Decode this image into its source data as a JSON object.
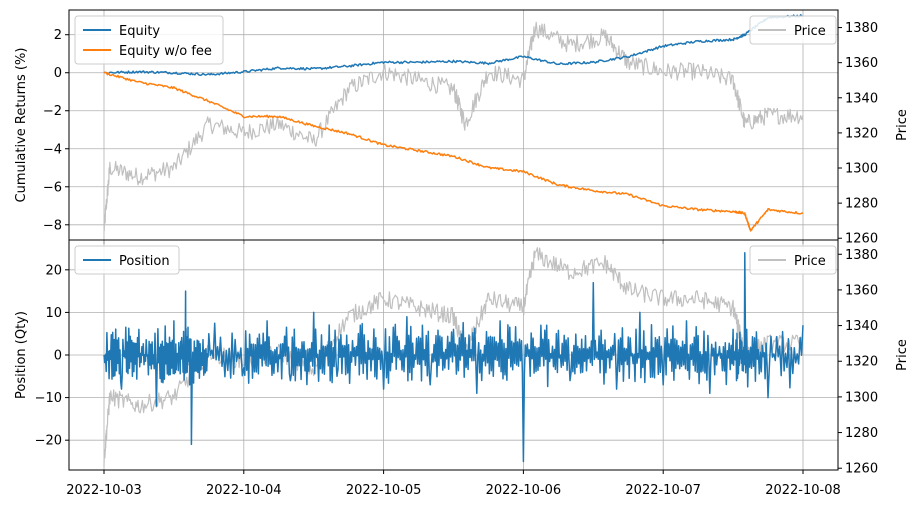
{
  "chart_data": [
    {
      "type": "line",
      "title": "",
      "xlabel": "",
      "ylabel": "Cumulative Returns (%)",
      "y2label": "Price",
      "x_ticks": [
        "2022-10-03",
        "2022-10-04",
        "2022-10-05",
        "2022-10-06",
        "2022-10-07",
        "2022-10-08"
      ],
      "ylim": [
        -8.8,
        3.3
      ],
      "y_ticks": [
        "−8",
        "−6",
        "−4",
        "−2",
        "0",
        "2"
      ],
      "y2lim": [
        1259,
        1390
      ],
      "y2_ticks": [
        "1260",
        "1280",
        "1300",
        "1320",
        "1340",
        "1360",
        "1380"
      ],
      "grid": true,
      "legend_left": {
        "placement": "top-left",
        "entries": [
          "Equity",
          "Equity w/o fee"
        ]
      },
      "legend_right": {
        "placement": "top-right",
        "entries": [
          "Price"
        ]
      },
      "series": [
        {
          "name": "Equity",
          "axis": "left",
          "color": "#1f77b4",
          "x": [
            "2022-10-03 00:00",
            "2022-10-03 06:00",
            "2022-10-03 12:00",
            "2022-10-03 18:00",
            "2022-10-04 00:00",
            "2022-10-04 06:00",
            "2022-10-04 12:00",
            "2022-10-04 18:00",
            "2022-10-05 00:00",
            "2022-10-05 06:00",
            "2022-10-05 12:00",
            "2022-10-05 18:00",
            "2022-10-06 00:00",
            "2022-10-06 06:00",
            "2022-10-06 12:00",
            "2022-10-06 18:00",
            "2022-10-07 00:00",
            "2022-10-07 06:00",
            "2022-10-07 12:00",
            "2022-10-07 14:00",
            "2022-10-07 18:00",
            "2022-10-08 00:00"
          ],
          "y": [
            0.0,
            0.05,
            0.0,
            -0.1,
            0.05,
            0.25,
            0.2,
            0.35,
            0.55,
            0.55,
            0.6,
            0.5,
            0.85,
            0.45,
            0.55,
            0.85,
            1.4,
            1.65,
            1.75,
            2.0,
            2.9,
            3.0
          ]
        },
        {
          "name": "Equity w/o fee",
          "axis": "left",
          "color": "#ff7f0e",
          "x": [
            "2022-10-03 00:00",
            "2022-10-03 06:00",
            "2022-10-03 12:00",
            "2022-10-03 18:00",
            "2022-10-04 00:00",
            "2022-10-04 06:00",
            "2022-10-04 12:00",
            "2022-10-04 18:00",
            "2022-10-05 00:00",
            "2022-10-05 06:00",
            "2022-10-05 12:00",
            "2022-10-05 18:00",
            "2022-10-06 00:00",
            "2022-10-06 06:00",
            "2022-10-06 12:00",
            "2022-10-06 18:00",
            "2022-10-07 00:00",
            "2022-10-07 06:00",
            "2022-10-07 12:00",
            "2022-10-07 14:00",
            "2022-10-07 15:00",
            "2022-10-07 18:00",
            "2022-10-08 00:00"
          ],
          "y": [
            0.0,
            -0.5,
            -0.8,
            -1.5,
            -2.3,
            -2.3,
            -2.8,
            -3.2,
            -3.8,
            -4.1,
            -4.4,
            -5.0,
            -5.2,
            -5.9,
            -6.2,
            -6.4,
            -7.0,
            -7.2,
            -7.3,
            -7.4,
            -8.3,
            -7.2,
            -7.4
          ]
        },
        {
          "name": "Price",
          "axis": "right",
          "color": "#c0c0c0",
          "x": [
            "2022-10-03 00:00",
            "2022-10-03 01:00",
            "2022-10-03 06:00",
            "2022-10-03 12:00",
            "2022-10-03 18:00",
            "2022-10-04 00:00",
            "2022-10-04 06:00",
            "2022-10-04 12:00",
            "2022-10-04 18:00",
            "2022-10-05 00:00",
            "2022-10-05 06:00",
            "2022-10-05 12:00",
            "2022-10-05 14:00",
            "2022-10-05 18:00",
            "2022-10-06 00:00",
            "2022-10-06 02:00",
            "2022-10-06 08:00",
            "2022-10-06 14:00",
            "2022-10-06 18:00",
            "2022-10-07 00:00",
            "2022-10-07 06:00",
            "2022-10-07 12:00",
            "2022-10-07 14:00",
            "2022-10-07 18:00",
            "2022-10-08 00:00"
          ],
          "y": [
            1265,
            1300,
            1295,
            1300,
            1325,
            1320,
            1325,
            1315,
            1345,
            1355,
            1350,
            1345,
            1325,
            1355,
            1350,
            1380,
            1370,
            1375,
            1360,
            1355,
            1355,
            1350,
            1325,
            1330,
            1330
          ]
        }
      ]
    },
    {
      "type": "line",
      "title": "",
      "xlabel": "",
      "ylabel": "Position (Qty)",
      "y2label": "Price",
      "x_ticks": [
        "2022-10-03",
        "2022-10-04",
        "2022-10-05",
        "2022-10-06",
        "2022-10-07",
        "2022-10-08"
      ],
      "ylim": [
        -27,
        27
      ],
      "y_ticks": [
        "−20",
        "−10",
        "0",
        "10",
        "20"
      ],
      "y2lim": [
        1259,
        1388
      ],
      "y2_ticks": [
        "1260",
        "1280",
        "1300",
        "1320",
        "1340",
        "1360",
        "1380"
      ],
      "grid": true,
      "legend_left": {
        "placement": "top-left",
        "entries": [
          "Position"
        ]
      },
      "legend_right": {
        "placement": "top-right",
        "entries": [
          "Price"
        ]
      },
      "series": [
        {
          "name": "Position",
          "axis": "left",
          "color": "#1f77b4",
          "x": [
            "2022-10-03 00:00",
            "2022-10-03 03:00",
            "2022-10-03 06:00",
            "2022-10-03 09:00",
            "2022-10-03 12:00",
            "2022-10-03 14:00",
            "2022-10-03 15:00",
            "2022-10-03 18:00",
            "2022-10-04 00:00",
            "2022-10-04 04:00",
            "2022-10-04 08:00",
            "2022-10-04 12:00",
            "2022-10-04 16:00",
            "2022-10-04 20:00",
            "2022-10-05 00:00",
            "2022-10-05 04:00",
            "2022-10-05 08:00",
            "2022-10-05 12:00",
            "2022-10-05 16:00",
            "2022-10-05 20:00",
            "2022-10-06 00:00",
            "2022-10-06 04:00",
            "2022-10-06 08:00",
            "2022-10-06 12:00",
            "2022-10-06 16:00",
            "2022-10-06 20:00",
            "2022-10-07 00:00",
            "2022-10-07 04:00",
            "2022-10-07 08:00",
            "2022-10-07 12:00",
            "2022-10-07 14:00",
            "2022-10-07 18:00",
            "2022-10-08 00:00"
          ],
          "y": [
            0,
            -8,
            6,
            -12,
            8,
            15,
            -21,
            5,
            -3,
            8,
            -6,
            10,
            -5,
            7,
            -8,
            9,
            -7,
            6,
            -9,
            8,
            -25,
            7,
            -6,
            17,
            -8,
            10,
            -7,
            8,
            -9,
            6,
            24,
            -10,
            7
          ]
        },
        {
          "name": "Price",
          "axis": "right",
          "color": "#c0c0c0",
          "x": [
            "2022-10-03 00:00",
            "2022-10-03 01:00",
            "2022-10-03 06:00",
            "2022-10-03 12:00",
            "2022-10-03 18:00",
            "2022-10-04 00:00",
            "2022-10-04 06:00",
            "2022-10-04 12:00",
            "2022-10-04 18:00",
            "2022-10-05 00:00",
            "2022-10-05 06:00",
            "2022-10-05 12:00",
            "2022-10-05 14:00",
            "2022-10-05 18:00",
            "2022-10-06 00:00",
            "2022-10-06 02:00",
            "2022-10-06 08:00",
            "2022-10-06 14:00",
            "2022-10-06 18:00",
            "2022-10-07 00:00",
            "2022-10-07 06:00",
            "2022-10-07 12:00",
            "2022-10-07 14:00",
            "2022-10-07 18:00",
            "2022-10-08 00:00"
          ],
          "y": [
            1265,
            1300,
            1295,
            1300,
            1325,
            1320,
            1325,
            1315,
            1345,
            1355,
            1350,
            1345,
            1325,
            1355,
            1350,
            1380,
            1370,
            1375,
            1360,
            1355,
            1355,
            1350,
            1325,
            1330,
            1330
          ]
        }
      ]
    }
  ]
}
